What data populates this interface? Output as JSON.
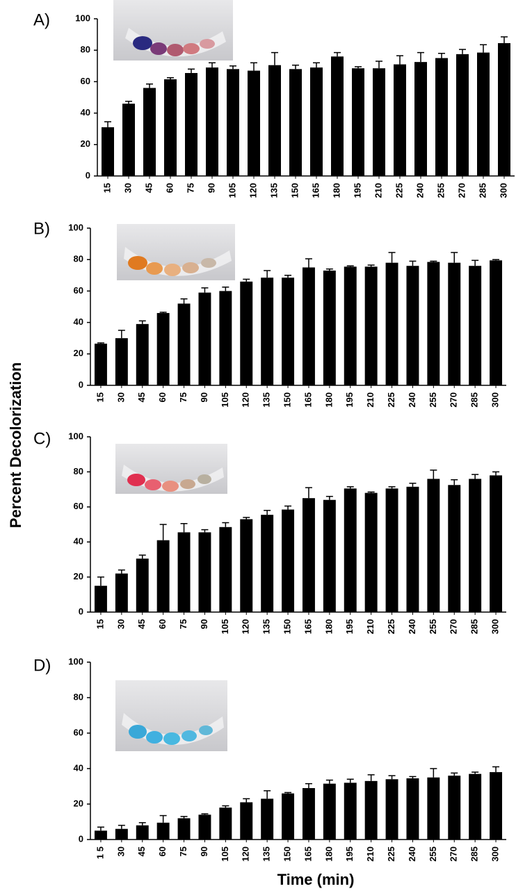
{
  "y_label": "Percent Decolorization",
  "x_label": "Time (min)",
  "chart_data": [
    {
      "type": "bar",
      "label": "A)",
      "categories": [
        "15",
        "30",
        "45",
        "60",
        "75",
        "90",
        "105",
        "120",
        "135",
        "150",
        "165",
        "180",
        "195",
        "210",
        "225",
        "240",
        "255",
        "270",
        "285",
        "300"
      ],
      "values": [
        31,
        46,
        56,
        61.5,
        65.5,
        69,
        68,
        67,
        70.5,
        68,
        69,
        76,
        68.5,
        68.5,
        71,
        72.5,
        75,
        77.5,
        78.5,
        84.5
      ],
      "errors": [
        3.5,
        1.5,
        2.5,
        1,
        2.5,
        3,
        2,
        5,
        8,
        2.5,
        3,
        2.5,
        1,
        4.5,
        5.5,
        6,
        3,
        3,
        5,
        4
      ],
      "color": "#000000",
      "ylim": [
        0,
        100
      ],
      "yticks": [
        0,
        20,
        40,
        60,
        80,
        100
      ]
    },
    {
      "type": "bar",
      "label": "B)",
      "categories": [
        "15",
        "30",
        "45",
        "60",
        "75",
        "90",
        "105",
        "120",
        "135",
        "150",
        "165",
        "180",
        "195",
        "210",
        "225",
        "240",
        "255",
        "270",
        "285",
        "300"
      ],
      "values": [
        26.5,
        30,
        39,
        46,
        52,
        59,
        60,
        66,
        68.5,
        68.5,
        75,
        73,
        75.5,
        75.5,
        78,
        76,
        78.5,
        78,
        76,
        79.5
      ],
      "errors": [
        0.5,
        5,
        2,
        0.5,
        3,
        3,
        2.5,
        1.5,
        4.5,
        1.5,
        5.5,
        1,
        0.5,
        1,
        6.5,
        3,
        0.5,
        6.5,
        3.5,
        0.5
      ],
      "color": "#000000",
      "ylim": [
        0,
        100
      ],
      "yticks": [
        0,
        20,
        40,
        60,
        80,
        100
      ]
    },
    {
      "type": "bar",
      "label": "C)",
      "categories": [
        "15",
        "30",
        "45",
        "60",
        "75",
        "90",
        "105",
        "120",
        "135",
        "150",
        "165",
        "180",
        "195",
        "210",
        "225",
        "240",
        "255",
        "270",
        "285",
        "300"
      ],
      "values": [
        15,
        22,
        30.5,
        41,
        45.5,
        45.5,
        48.5,
        53,
        55.5,
        58.5,
        65,
        64,
        70.5,
        68,
        70.5,
        71.5,
        76,
        72.5,
        76,
        78
      ],
      "errors": [
        5,
        2,
        2,
        9,
        5,
        1.5,
        2.5,
        1,
        2.5,
        2,
        6,
        2,
        1,
        0.5,
        1,
        2,
        5,
        3,
        2.5,
        2
      ],
      "color": "#000000",
      "ylim": [
        0,
        100
      ],
      "yticks": [
        0,
        20,
        40,
        60,
        80,
        100
      ]
    },
    {
      "type": "bar",
      "label": "D)",
      "categories": [
        "1 5",
        "30",
        "45",
        "60",
        "75",
        "90",
        "105",
        "120",
        "135",
        "150",
        "165",
        "180",
        "195",
        "210",
        "225",
        "240",
        "255",
        "270",
        "285",
        "300"
      ],
      "values": [
        5,
        6,
        8,
        9.5,
        12,
        14,
        18,
        21,
        23,
        26,
        29,
        31.5,
        32,
        33,
        34,
        34.5,
        35,
        36,
        37,
        38
      ],
      "errors": [
        2,
        2,
        1.5,
        4,
        1,
        0.5,
        1,
        2,
        4.5,
        0.5,
        2.5,
        2,
        2,
        3.5,
        2,
        1,
        5,
        1.5,
        1,
        3
      ],
      "color": "#000000",
      "ylim": [
        0,
        100
      ],
      "yticks": [
        0,
        20,
        40,
        60,
        80,
        100
      ]
    }
  ]
}
